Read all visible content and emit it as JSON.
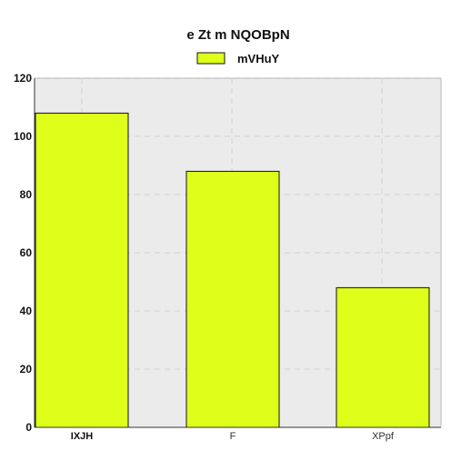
{
  "chart_data": {
    "type": "bar",
    "title": "e Zt  m NQOBpN",
    "xlabel": "",
    "ylabel": "",
    "categories": [
      "IXJH",
      "F",
      "XPpf"
    ],
    "series": [
      {
        "name": "mVHuY",
        "values": [
          108,
          88,
          48
        ],
        "color": "#ddff1a"
      }
    ],
    "ylim": [
      0,
      120
    ],
    "yticks": [
      0,
      20,
      40,
      60,
      80,
      100,
      120
    ],
    "grid": true,
    "legend_position": "top-center",
    "colors": {
      "plot_background": "#ebebeb",
      "grid": "#d6d6d6",
      "bar_edge": "#111111"
    }
  }
}
